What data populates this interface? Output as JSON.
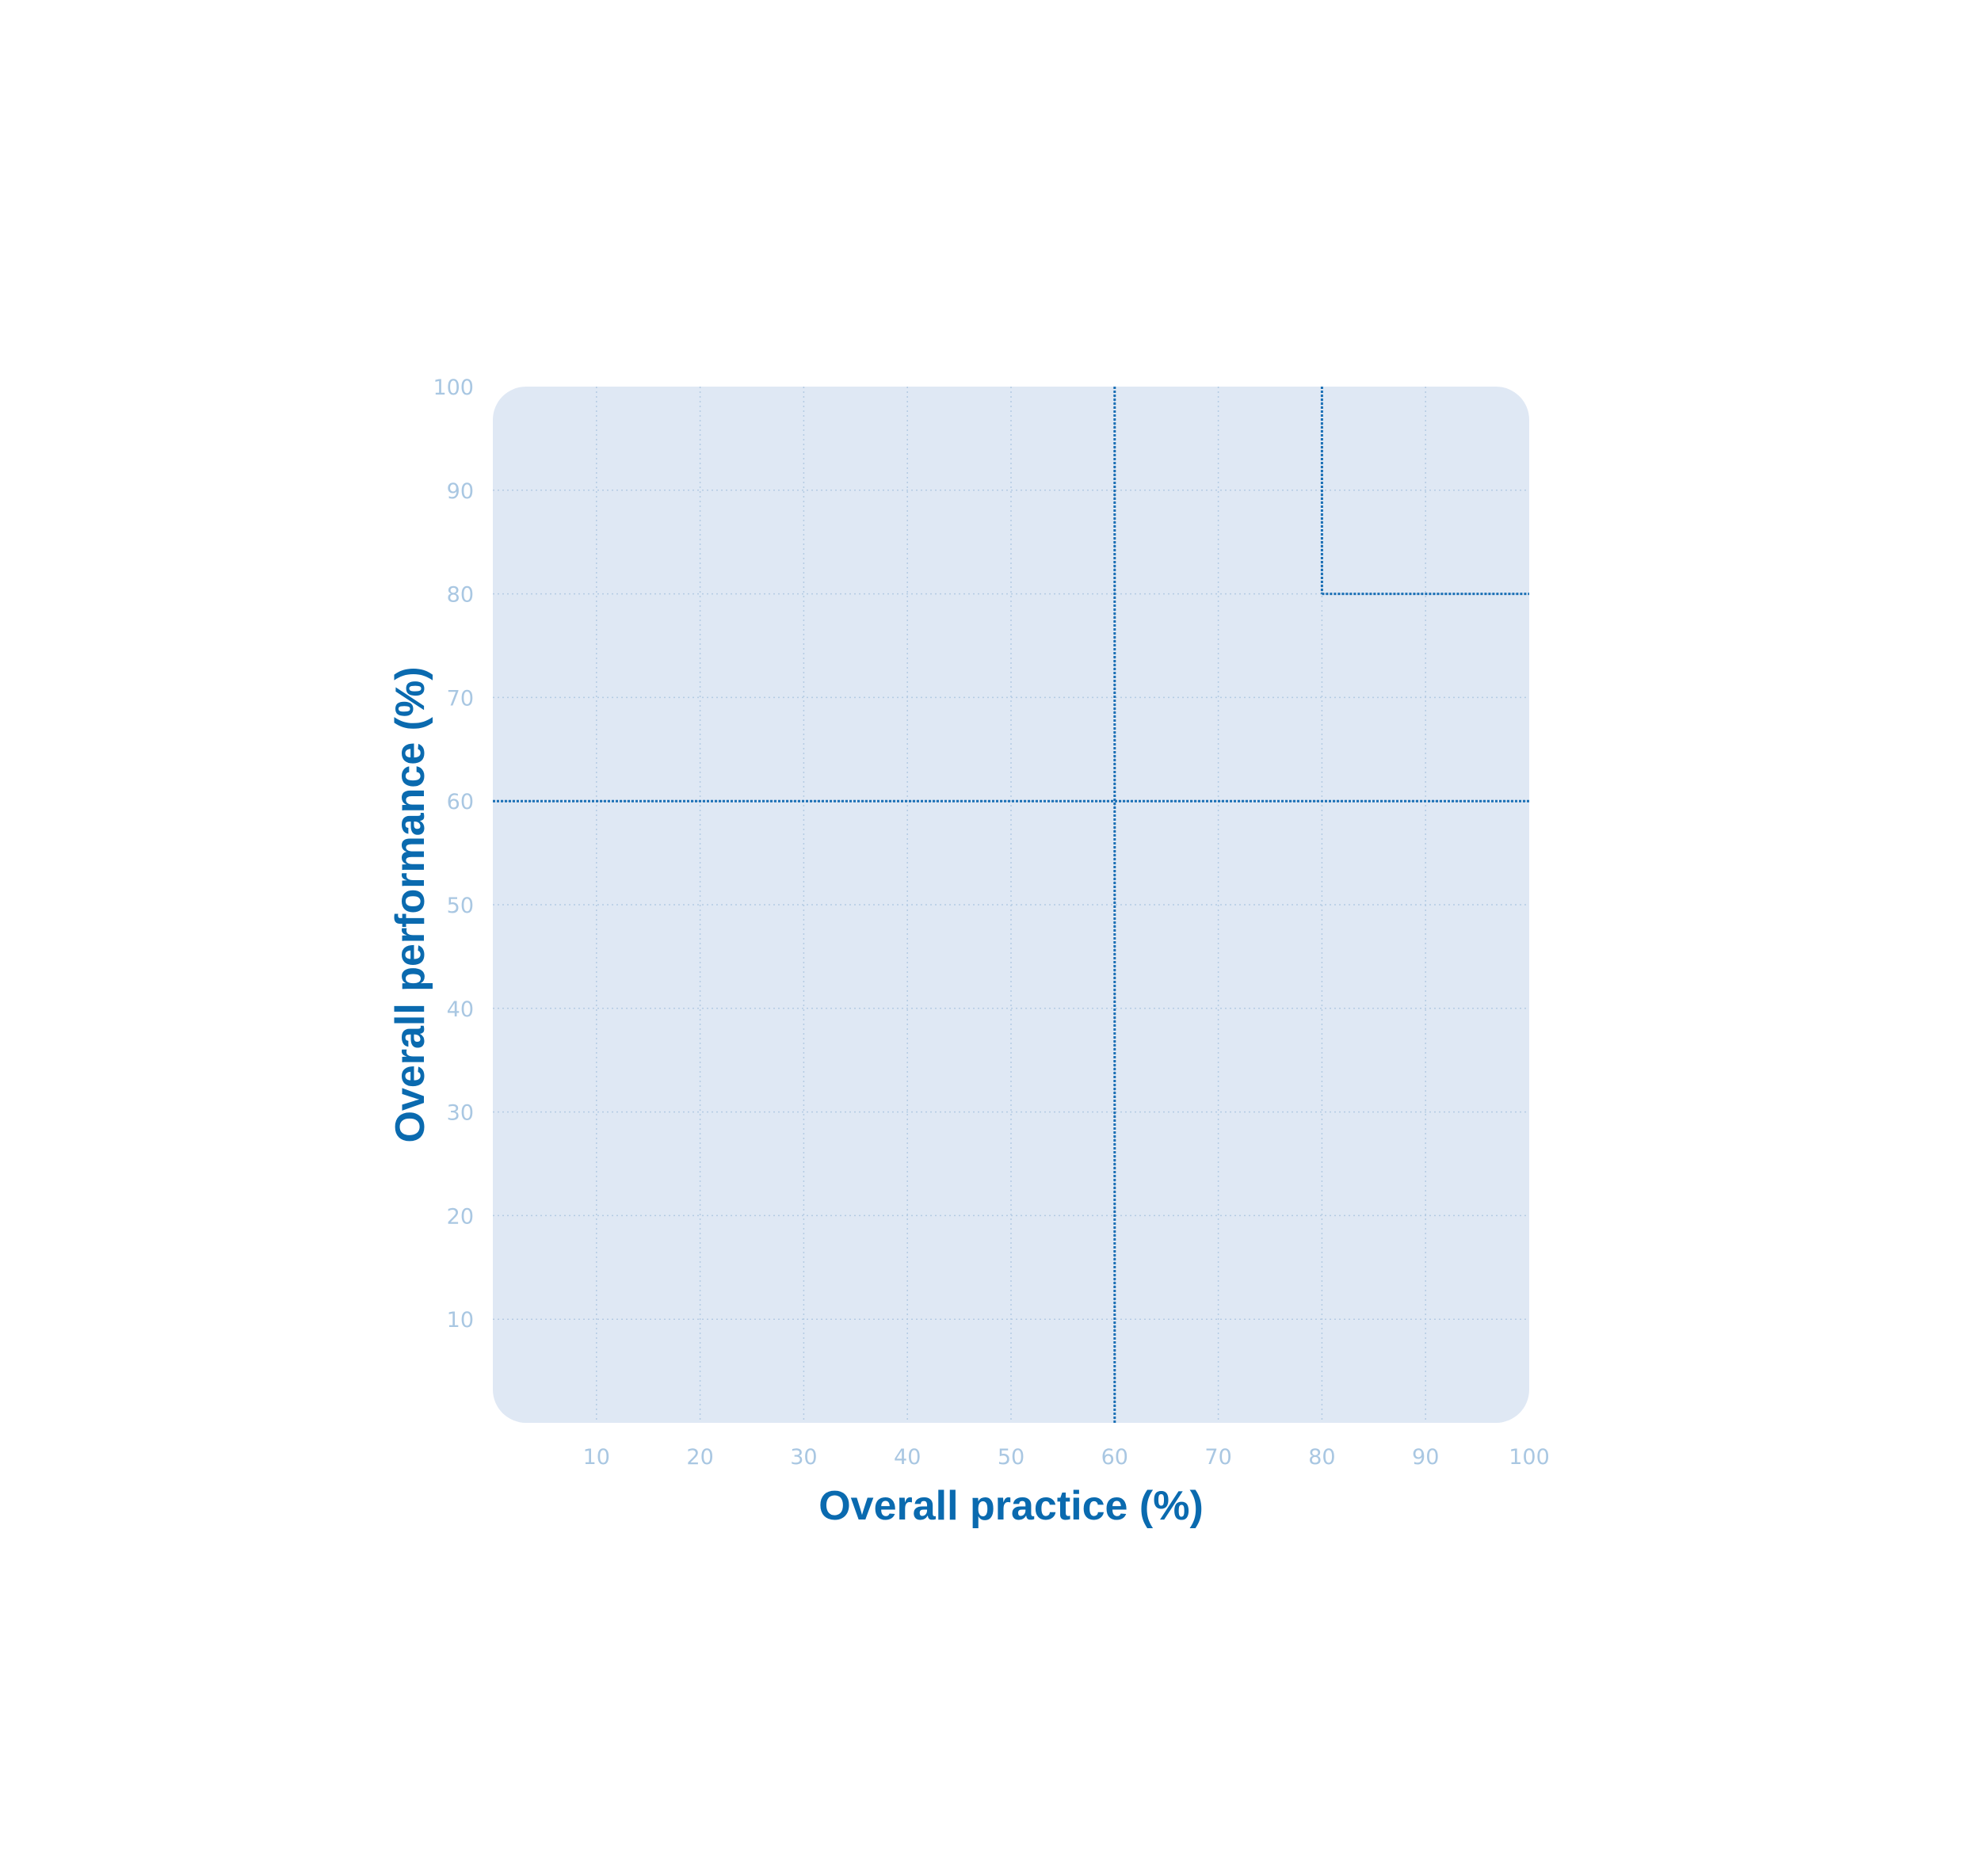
{
  "chart_data": {
    "type": "scatter",
    "title": "",
    "xlabel": "Overall practice (%)",
    "ylabel": "Overall performance (%)",
    "xlim": [
      0,
      100
    ],
    "ylim": [
      0,
      100
    ],
    "xticks": [
      10,
      20,
      30,
      40,
      50,
      60,
      70,
      80,
      90,
      100
    ],
    "yticks": [
      10,
      20,
      30,
      40,
      50,
      60,
      70,
      80,
      90,
      100
    ],
    "grid": true,
    "series": [],
    "reference_lines": [
      {
        "orientation": "vertical",
        "x": 60,
        "y_from": 0,
        "y_to": 100
      },
      {
        "orientation": "horizontal",
        "y": 60,
        "x_from": 0,
        "x_to": 100
      },
      {
        "orientation": "vertical",
        "x": 80,
        "y_from": 80,
        "y_to": 100
      },
      {
        "orientation": "horizontal",
        "y": 80,
        "x_from": 80,
        "x_to": 100
      }
    ],
    "colors": {
      "plot_background": "#dfe8f4",
      "grid": "#b4cbe3",
      "tick_label": "#a9c7e2",
      "reference_line": "#1a6fb5",
      "axis_title": "#0a6aaf"
    }
  }
}
